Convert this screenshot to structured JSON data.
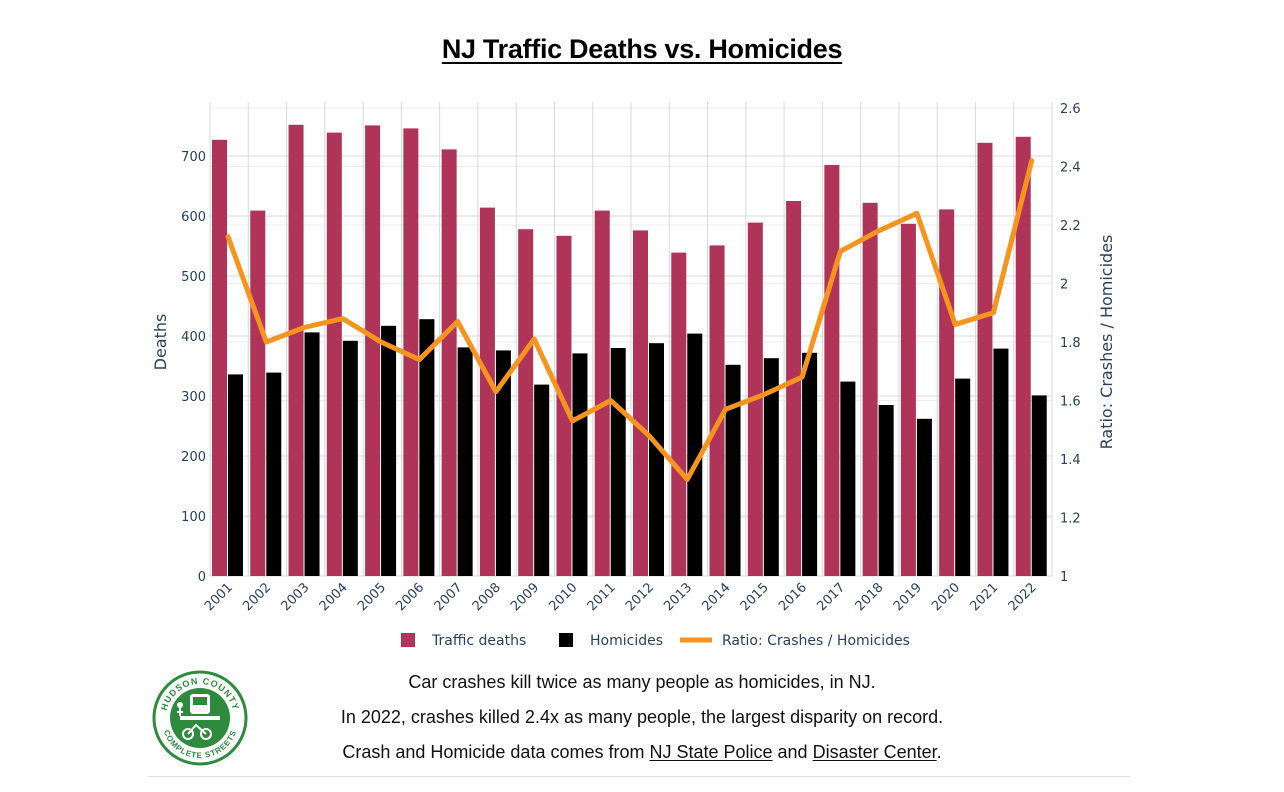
{
  "title": "NJ Traffic Deaths vs. Homicides",
  "colors": {
    "traffic": "#b0345a",
    "homicides": "#000000",
    "ratio": "#f7941d",
    "grid": "#d9d9d9",
    "axis_text": "#2a3f5f",
    "logo_green": "#2e8b3e"
  },
  "chart_data": {
    "type": "bar",
    "categories": [
      "2001",
      "2002",
      "2003",
      "2004",
      "2005",
      "2006",
      "2007",
      "2008",
      "2009",
      "2010",
      "2011",
      "2012",
      "2013",
      "2014",
      "2015",
      "2016",
      "2017",
      "2018",
      "2019",
      "2020",
      "2021",
      "2022"
    ],
    "series": [
      {
        "name": "Traffic deaths",
        "type": "bar",
        "axis": "left",
        "values": [
          727,
          609,
          752,
          739,
          751,
          746,
          711,
          614,
          578,
          567,
          609,
          576,
          539,
          551,
          589,
          625,
          685,
          622,
          587,
          611,
          722,
          732
        ]
      },
      {
        "name": "Homicides",
        "type": "bar",
        "axis": "left",
        "values": [
          336,
          339,
          406,
          392,
          417,
          428,
          381,
          376,
          319,
          371,
          380,
          388,
          404,
          352,
          363,
          372,
          324,
          285,
          262,
          329,
          379,
          301
        ]
      },
      {
        "name": "Ratio: Crashes / Homicides",
        "type": "line",
        "axis": "right",
        "values": [
          2.16,
          1.8,
          1.85,
          1.88,
          1.8,
          1.74,
          1.87,
          1.63,
          1.81,
          1.53,
          1.6,
          1.48,
          1.33,
          1.57,
          1.62,
          1.68,
          2.11,
          2.18,
          2.24,
          1.86,
          1.9,
          2.42
        ]
      }
    ],
    "ylabel": "Deaths",
    "ylim": [
      0,
      790
    ],
    "yticks": [
      0,
      100,
      200,
      300,
      400,
      500,
      600,
      700
    ],
    "y2label": "Ratio: Crashes / Homicides",
    "y2lim": [
      1,
      2.6
    ],
    "y2ticks": [
      "1",
      "1.2",
      "1.4",
      "1.6",
      "1.8",
      "2",
      "2.2",
      "2.4",
      "2.6"
    ],
    "grid": true,
    "legend_position": "bottom-center"
  },
  "captions": {
    "line1": "Car crashes kill twice as many people as homicides, in NJ.",
    "line2": "In 2022, crashes killed 2.4x as many people, the largest disparity on record.",
    "line3_prefix": "Crash and Homicide data comes from ",
    "link1": "NJ State Police",
    "line3_mid": " and ",
    "link2": "Disaster Center",
    "line3_suffix": "."
  },
  "logo": {
    "top_text": "HUDSON COUNTY",
    "bottom_text": "COMPLETE STREETS"
  }
}
